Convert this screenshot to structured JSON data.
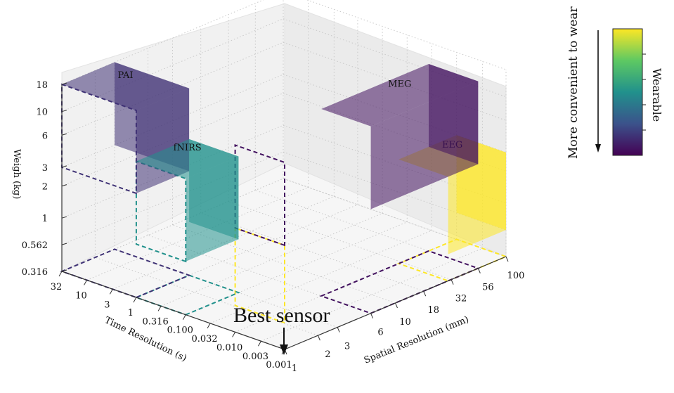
{
  "chart_data": {
    "type": "3d-box",
    "axes": {
      "x": {
        "label": "Spatial Resolution (mm)",
        "scale": "log",
        "range": [
          1,
          100
        ],
        "ticks": [
          "1",
          "2",
          "3",
          "6",
          "10",
          "18",
          "32",
          "56",
          "100"
        ]
      },
      "y": {
        "label": "Time Resolution (s)",
        "scale": "log",
        "range": [
          0.001,
          32
        ],
        "ticks": [
          "0.001",
          "0.003",
          "0.010",
          "0.032",
          "0.100",
          "0.316",
          "1",
          "3",
          "10",
          "32"
        ]
      },
      "z": {
        "label": "Weigh (kg)",
        "scale": "log",
        "range": [
          0.316,
          18
        ],
        "ticks": [
          "0.316",
          "0.562",
          "1",
          "2",
          "3",
          "6",
          "10",
          "18"
        ]
      }
    },
    "series": [
      {
        "name": "EEG",
        "x": [
          30,
          100
        ],
        "y": [
          0.001,
          0.01
        ],
        "z": [
          0.562,
          3
        ],
        "wearable": 1.0
      },
      {
        "name": "MEG",
        "x": [
          6,
          56
        ],
        "y": [
          0.001,
          0.01
        ],
        "z": [
          3,
          18
        ],
        "wearable": 0.05
      },
      {
        "name": "fNIRS",
        "x": [
          1,
          3
        ],
        "y": [
          0.1,
          1
        ],
        "z": [
          1,
          6
        ],
        "wearable": 0.5
      },
      {
        "name": "PAI",
        "x": [
          1,
          3
        ],
        "y": [
          1,
          32
        ],
        "z": [
          3,
          18
        ],
        "wearable": 0.15
      }
    ],
    "colorbar": {
      "label": "Wearable",
      "colormap": "viridis"
    },
    "annotations": {
      "best_sensor": "Best sensor",
      "convenience_arrow": "More convenient to wear"
    }
  }
}
